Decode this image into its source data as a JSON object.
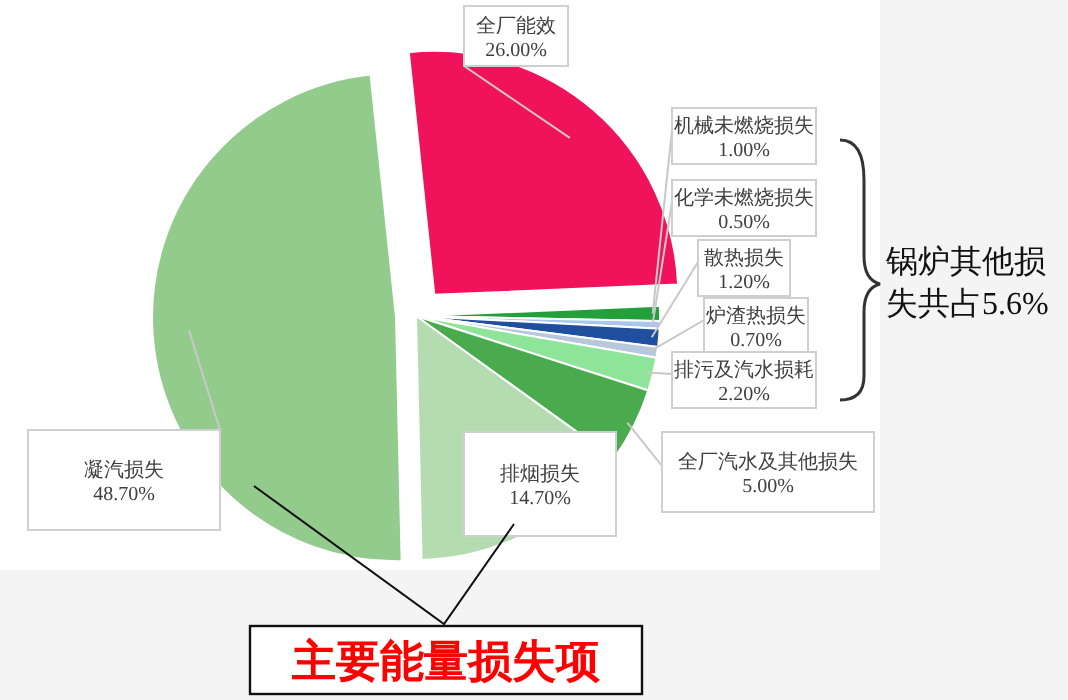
{
  "chart_data": {
    "type": "pie",
    "categories": [
      "全厂能效",
      "机械未燃烧损失",
      "化学未燃烧损失",
      "散热损失",
      "炉渣热损失",
      "排污及汽水损耗",
      "全厂汽水及其他损失",
      "排烟损失",
      "凝汽损失"
    ],
    "values": [
      26.0,
      1.0,
      0.5,
      1.2,
      0.7,
      2.2,
      5.0,
      14.7,
      48.7
    ],
    "colors": [
      "#f0135c",
      "#23a03c",
      "#a9c6ec",
      "#1f4f9e",
      "#b8c8dc",
      "#8ee59a",
      "#4aaa4e",
      "#b4dcb0",
      "#92cb8c"
    ],
    "value_labels": [
      "26.00%",
      "1.00%",
      "0.50%",
      "1.20%",
      "0.70%",
      "2.20%",
      "5.00%",
      "14.70%",
      "48.70%"
    ],
    "annotations": [
      "锅炉其他损失共占5.6%",
      "主要能量损失项"
    ]
  }
}
